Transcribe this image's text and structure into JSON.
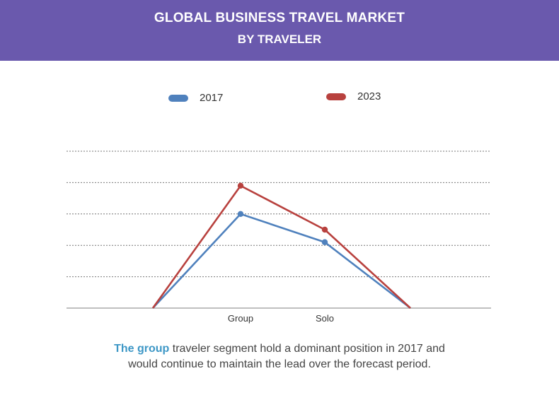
{
  "header": {
    "title": "GLOBAL BUSINESS TRAVEL MARKET",
    "subtitle": "BY TRAVELER"
  },
  "colors": {
    "banner": "#6a59ad",
    "series_2017": "#4f81bd",
    "series_2023": "#b8413e",
    "highlight": "#3d97c6"
  },
  "chart_data": {
    "type": "line",
    "categories": [
      "",
      "Group",
      "Solo",
      ""
    ],
    "series": [
      {
        "name": "2017",
        "values": [
          0,
          3.0,
          2.1,
          0
        ],
        "color": "#4f81bd"
      },
      {
        "name": "2023",
        "values": [
          0,
          3.9,
          2.5,
          0
        ],
        "color": "#b8413e"
      }
    ],
    "ylim": [
      0,
      5
    ],
    "grid": true,
    "legend_position": "top"
  },
  "caption": {
    "highlight": "The group",
    "text_line1": " traveler segment hold a dominant position in 2017 and",
    "text_line2": "would continue to maintain the lead over the forecast period."
  }
}
